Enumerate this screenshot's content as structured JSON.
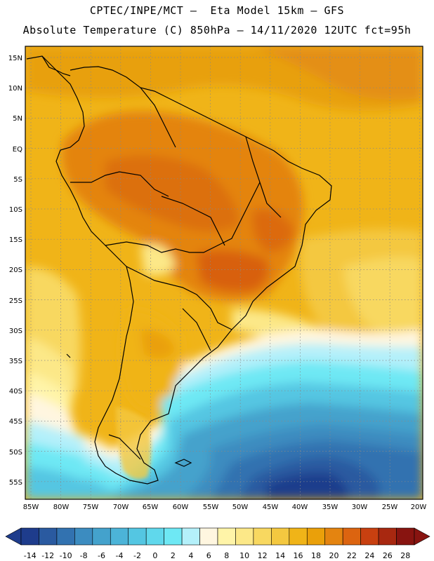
{
  "header": {
    "line1": "CPTEC/INPE/MCT –  Eta Model 15km – GFS",
    "line2": "Absolute Temperature (C) 850hPa – 14/11/2020 12UTC fct=95h"
  },
  "axes": {
    "lat_labels": [
      "15N",
      "10N",
      "5N",
      "EQ",
      "5S",
      "10S",
      "15S",
      "20S",
      "25S",
      "30S",
      "35S",
      "40S",
      "45S",
      "50S",
      "55S"
    ],
    "lon_labels": [
      "85W",
      "80W",
      "75W",
      "70W",
      "65W",
      "60W",
      "55W",
      "50W",
      "45W",
      "40W",
      "35W",
      "30W",
      "25W",
      "20W"
    ]
  },
  "legend": {
    "labels": [
      "-14",
      "-12",
      "-10",
      "-8",
      "-6",
      "-4",
      "-2",
      "0",
      "2",
      "4",
      "6",
      "8",
      "10",
      "12",
      "14",
      "16",
      "18",
      "20",
      "22",
      "24",
      "26",
      "28"
    ],
    "colors": [
      "#1e3c8c",
      "#2a5aa0",
      "#3272b0",
      "#3c8cc0",
      "#44a2cc",
      "#4cb4d8",
      "#54c6e2",
      "#60d8ec",
      "#6ee8f4",
      "#b4f0fa",
      "#fff6e0",
      "#fff4a8",
      "#fce888",
      "#f8d860",
      "#f4c840",
      "#f0b418",
      "#eaa00a",
      "#e48410",
      "#dc6410",
      "#c84010",
      "#a82810",
      "#881410"
    ]
  }
}
